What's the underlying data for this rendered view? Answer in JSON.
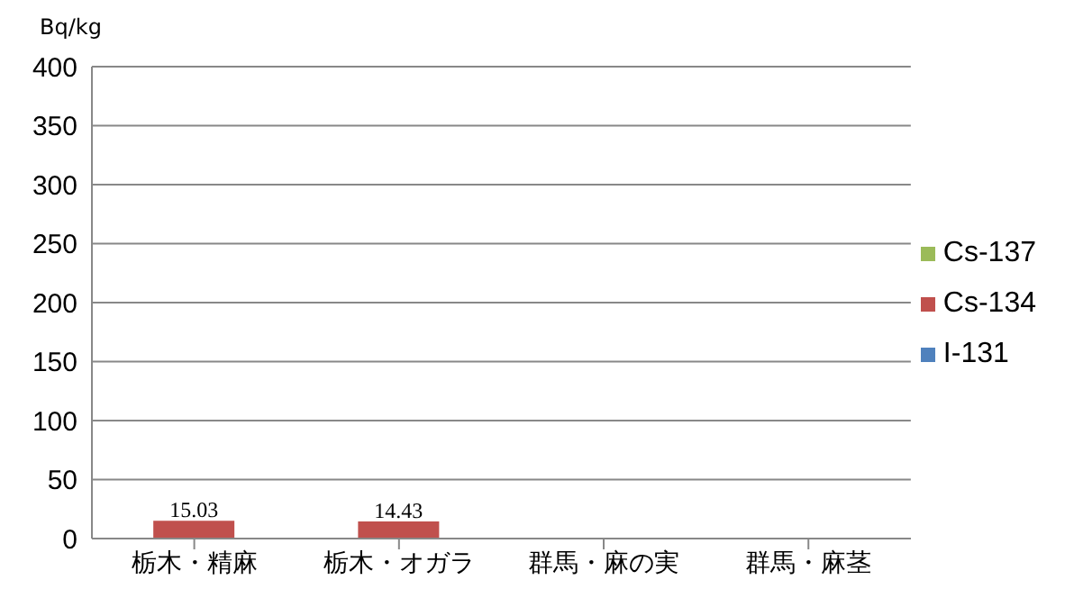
{
  "chart_data": {
    "type": "bar",
    "stacked": true,
    "ylabel": "Bq/kg",
    "categories": [
      "栃木・精麻",
      "栃木・オガラ",
      "群馬・麻の実",
      "群馬・麻茎"
    ],
    "series": [
      {
        "name": "I-131",
        "color": "#4f81bd",
        "values": [
          null,
          null,
          null,
          null
        ]
      },
      {
        "name": "Cs-134",
        "color": "#c0504d",
        "values": [
          15.03,
          14.43,
          null,
          null
        ],
        "value_labels": [
          "15.03",
          "14.43",
          null,
          null
        ]
      },
      {
        "name": "Cs-137",
        "color": "#9bbb59",
        "values": [
          null,
          null,
          null,
          null
        ]
      }
    ],
    "ylim": [
      0,
      400
    ],
    "yticks": [
      0,
      50,
      100,
      150,
      200,
      250,
      300,
      350,
      400
    ],
    "grid": "y",
    "legend": "right"
  }
}
